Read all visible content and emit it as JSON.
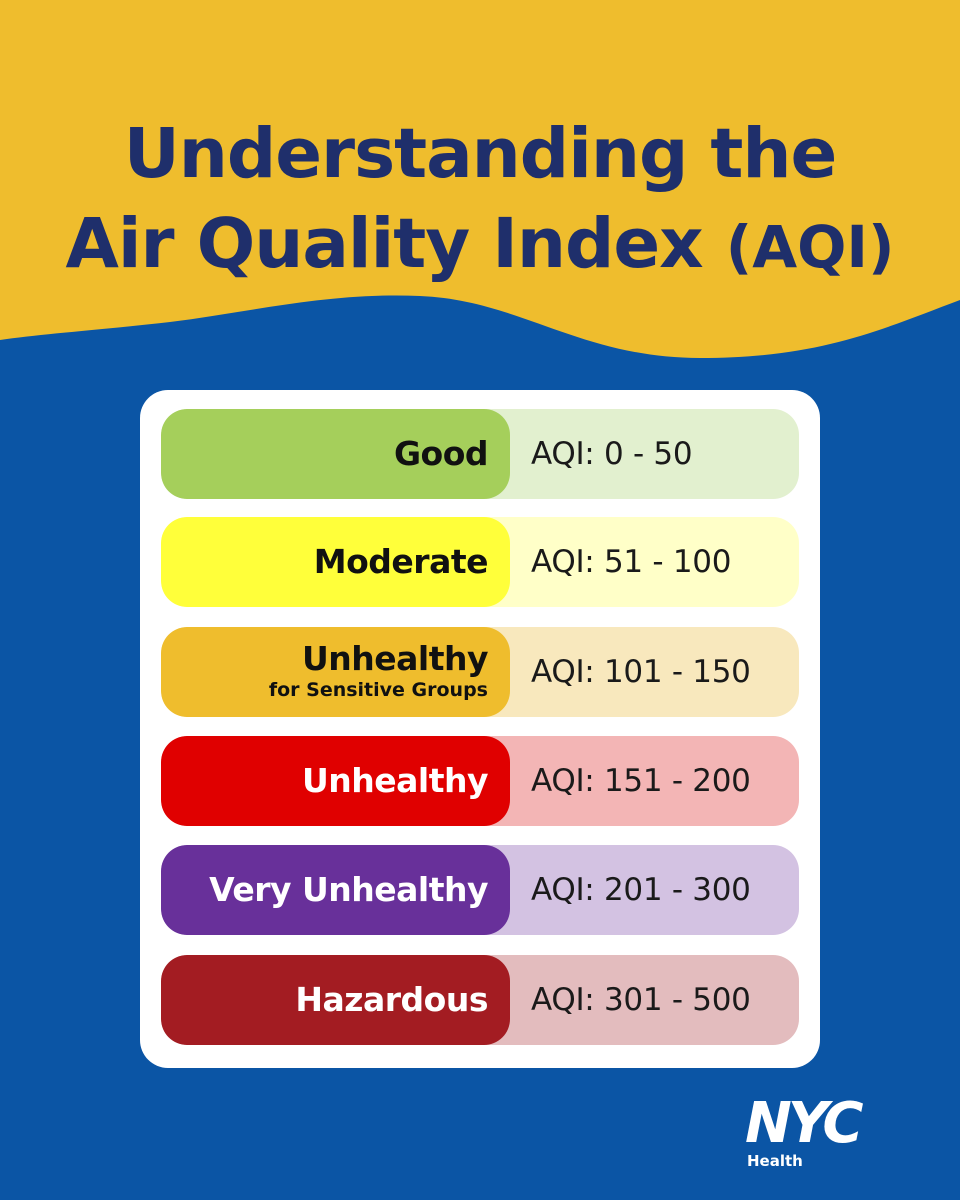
{
  "title": {
    "line1": "Understanding the",
    "line2_main": "Air Quality Index ",
    "line2_abbr": "(AQI)"
  },
  "colors": {
    "header_yellow": "#efbd2d",
    "background_blue": "#0b55a5",
    "title_navy": "#1f2f6b"
  },
  "categories": [
    {
      "name": "Good",
      "sub": "",
      "range": "AQI: 0 - 50",
      "label_color": "#a5cf5b",
      "range_color": "#e2f0cf",
      "text_color": "#111111"
    },
    {
      "name": "Moderate",
      "sub": "",
      "range": "AQI: 51 - 100",
      "label_color": "#ffff3a",
      "range_color": "#ffffc8",
      "text_color": "#111111"
    },
    {
      "name": "Unhealthy",
      "sub": "for Sensitive Groups",
      "range": "AQI: 101 - 150",
      "label_color": "#efbd2d",
      "range_color": "#f8e8bd",
      "text_color": "#111111"
    },
    {
      "name": "Unhealthy",
      "sub": "",
      "range": "AQI: 151 - 200",
      "label_color": "#e00000",
      "range_color": "#f3b5b5",
      "text_color": "#ffffff"
    },
    {
      "name": "Very Unhealthy",
      "sub": "",
      "range": "AQI: 201 - 300",
      "label_color": "#68309a",
      "range_color": "#d3c2e2",
      "text_color": "#ffffff"
    },
    {
      "name": "Hazardous",
      "sub": "",
      "range": "AQI: 301 - 500",
      "label_color": "#a31c22",
      "range_color": "#e3bcbe",
      "text_color": "#ffffff"
    }
  ],
  "logo": {
    "wordmark": "NYC",
    "subtitle": "Health"
  }
}
